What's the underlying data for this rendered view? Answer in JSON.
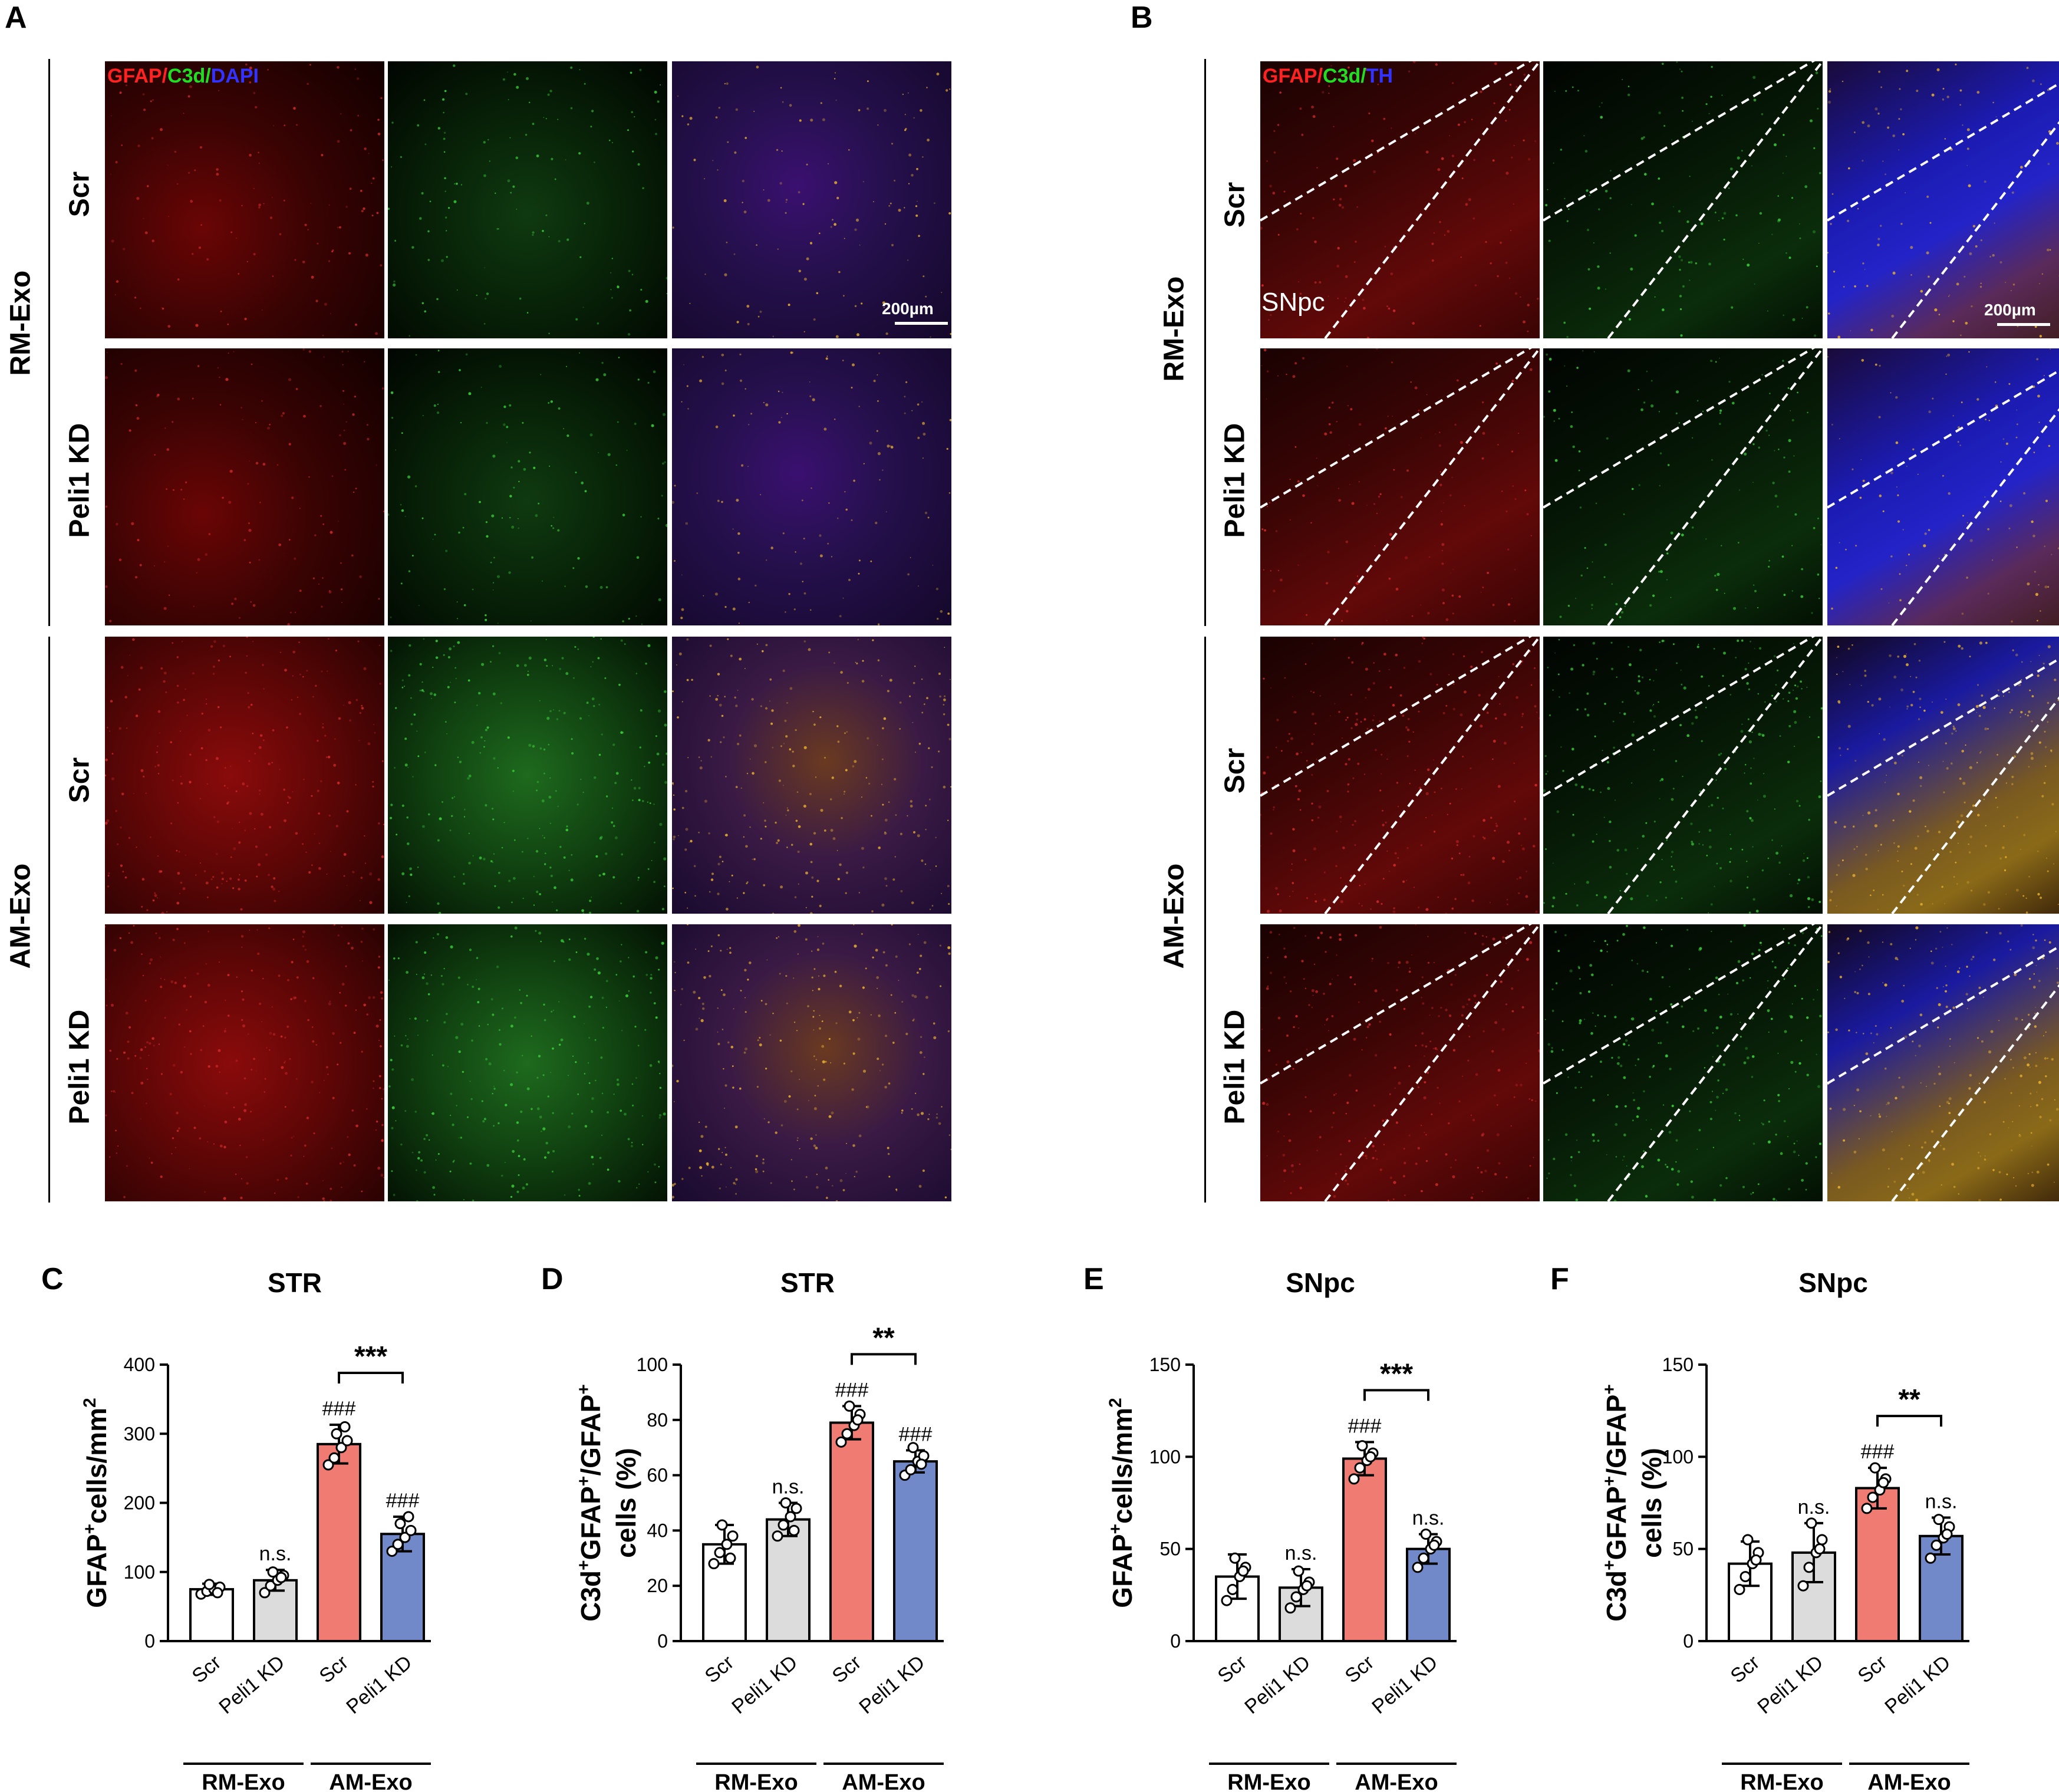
{
  "panels": {
    "A": {
      "letter": "A",
      "channel_labels": [
        "GFAP",
        "/",
        "C3d",
        "/",
        "DAPI"
      ],
      "scale_bar": "200µm",
      "group_labels": [
        "RM-Exo",
        "AM-Exo"
      ],
      "row_labels": [
        "Scr",
        "Peli1 KD",
        "Scr",
        "Peli1 KD"
      ]
    },
    "B": {
      "letter": "B",
      "channel_labels": [
        "GFAP",
        "/",
        "C3d",
        "/",
        "TH"
      ],
      "scale_bar": "200µm",
      "region_label": "SNpc",
      "group_labels": [
        "RM-Exo",
        "AM-Exo"
      ],
      "row_labels": [
        "Scr",
        "Peli1 KD",
        "Scr",
        "Peli1 KD"
      ]
    }
  },
  "colors": {
    "scr_bar": "#ffffff",
    "peli_rm_bar": "#dcdcdc",
    "scr_am_bar": "#f07b73",
    "peli_am_bar": "#7189c8",
    "gfap": "#ff2222",
    "c3d": "#22dd22",
    "dapi_th": "#3333ff"
  },
  "chart_data": [
    {
      "letter": "C",
      "type": "bar",
      "title": "STR",
      "ylabel": "GFAP+cells/mm2",
      "ylabel_parts": {
        "a": "GFAP",
        "sup1": "+",
        "b": "cells/mm",
        "sup2": "2"
      },
      "categories": [
        "Scr",
        "Peli1 KD",
        "Scr",
        "Peli1 KD"
      ],
      "groups": [
        {
          "name": "RM-Exo",
          "span": [
            0,
            1
          ]
        },
        {
          "name": "AM-Exo",
          "span": [
            2,
            3
          ]
        }
      ],
      "values": [
        75,
        88,
        285,
        155
      ],
      "errors": [
        8,
        15,
        28,
        25
      ],
      "points": [
        [
          68,
          72,
          75,
          78,
          82,
          70
        ],
        [
          70,
          80,
          88,
          95,
          100,
          92
        ],
        [
          255,
          265,
          280,
          290,
          300,
          310
        ],
        [
          130,
          140,
          150,
          160,
          170,
          180
        ]
      ],
      "ylim": [
        0,
        400
      ],
      "yticks": [
        0,
        100,
        200,
        300,
        400
      ],
      "annotations": [
        "",
        "n.s.",
        "###",
        "###"
      ],
      "bracket": {
        "from": 2,
        "to": 3,
        "label": "***"
      }
    },
    {
      "letter": "D",
      "type": "bar",
      "title": "STR",
      "ylabel": "C3d+GFAP+/GFAP+ cells (%)",
      "ylabel_parts": {
        "line1": [
          "C3d",
          "+",
          "GFAP",
          "+",
          "/GFAP",
          "+"
        ],
        "line2": "cells (%)"
      },
      "categories": [
        "Scr",
        "Peli1 KD",
        "Scr",
        "Peli1 KD"
      ],
      "groups": [
        {
          "name": "RM-Exo",
          "span": [
            0,
            1
          ]
        },
        {
          "name": "AM-Exo",
          "span": [
            2,
            3
          ]
        }
      ],
      "values": [
        35,
        44,
        79,
        65
      ],
      "errors": [
        7,
        6,
        6,
        4
      ],
      "points": [
        [
          28,
          32,
          35,
          38,
          42,
          30
        ],
        [
          38,
          42,
          45,
          48,
          50,
          40
        ],
        [
          72,
          75,
          78,
          82,
          85,
          80
        ],
        [
          60,
          62,
          65,
          67,
          70,
          64
        ]
      ],
      "ylim": [
        0,
        100
      ],
      "yticks": [
        0,
        20,
        40,
        60,
        80,
        100
      ],
      "annotations": [
        "",
        "n.s.",
        "###",
        "###"
      ],
      "bracket": {
        "from": 2,
        "to": 3,
        "label": "**"
      }
    },
    {
      "letter": "E",
      "type": "bar",
      "title": "SNpc",
      "ylabel": "GFAP+cells/mm2",
      "ylabel_parts": {
        "a": "GFAP",
        "sup1": "+",
        "b": "cells/mm",
        "sup2": "2"
      },
      "categories": [
        "Scr",
        "Peli1 KD",
        "Scr",
        "Peli1 KD"
      ],
      "groups": [
        {
          "name": "RM-Exo",
          "span": [
            0,
            1
          ]
        },
        {
          "name": "AM-Exo",
          "span": [
            2,
            3
          ]
        }
      ],
      "values": [
        35,
        29,
        99,
        50
      ],
      "errors": [
        12,
        10,
        9,
        8
      ],
      "points": [
        [
          22,
          28,
          35,
          40,
          45,
          38
        ],
        [
          18,
          24,
          28,
          32,
          38,
          30
        ],
        [
          88,
          94,
          98,
          102,
          106,
          100
        ],
        [
          40,
          45,
          50,
          54,
          58,
          52
        ]
      ],
      "ylim": [
        0,
        150
      ],
      "yticks": [
        0,
        50,
        100,
        150
      ],
      "annotations": [
        "",
        "n.s.",
        "###",
        "n.s."
      ],
      "bracket": {
        "from": 2,
        "to": 3,
        "label": "***"
      }
    },
    {
      "letter": "F",
      "type": "bar",
      "title": "SNpc",
      "ylabel": "C3d+GFAP+/GFAP+ cells (%)",
      "ylabel_parts": {
        "line1": [
          "C3d",
          "+",
          "GFAP",
          "+",
          "/GFAP",
          "+"
        ],
        "line2": "cells (%)"
      },
      "categories": [
        "Scr",
        "Peli1 KD",
        "Scr",
        "Peli1 KD"
      ],
      "groups": [
        {
          "name": "RM-Exo",
          "span": [
            0,
            1
          ]
        },
        {
          "name": "AM-Exo",
          "span": [
            2,
            3
          ]
        }
      ],
      "values": [
        42,
        48,
        83,
        57
      ],
      "errors": [
        12,
        16,
        11,
        10
      ],
      "points": [
        [
          28,
          35,
          42,
          48,
          55,
          44
        ],
        [
          30,
          40,
          48,
          55,
          64,
          50
        ],
        [
          72,
          78,
          82,
          88,
          94,
          86
        ],
        [
          45,
          52,
          56,
          62,
          66,
          58
        ]
      ],
      "ylim": [
        0,
        150
      ],
      "yticks": [
        0,
        50,
        100,
        150
      ],
      "annotations": [
        "",
        "n.s.",
        "###",
        "n.s."
      ],
      "bracket": {
        "from": 2,
        "to": 3,
        "label": "**"
      }
    }
  ]
}
